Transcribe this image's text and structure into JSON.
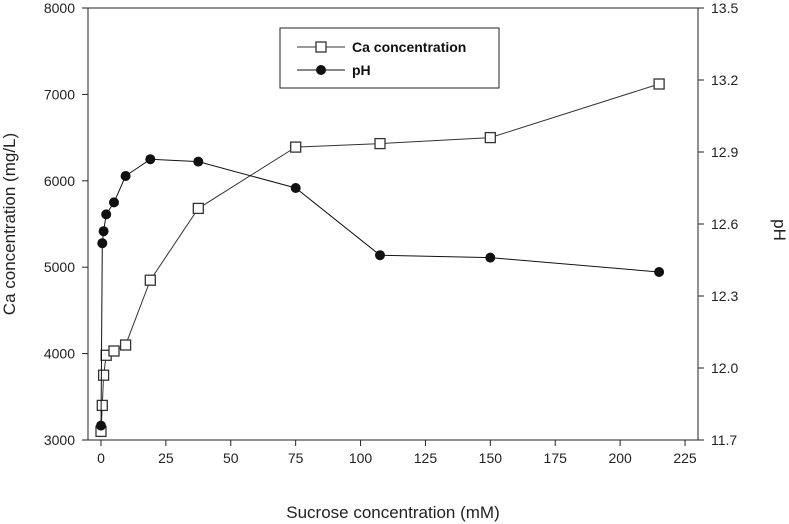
{
  "chart_data": {
    "type": "line",
    "title": "",
    "xlabel": "Sucrose concentration (mM)",
    "ylabel": "Ca concentration (mg/L)",
    "y2label": "pH",
    "xlim": [
      -5,
      230
    ],
    "ylim": [
      3000,
      8000
    ],
    "y2lim": [
      11.7,
      13.5
    ],
    "xticks": [
      0,
      25,
      50,
      75,
      100,
      125,
      150,
      175,
      200,
      225
    ],
    "xtick_labels": [
      "0",
      "25",
      "50",
      "75",
      "100",
      "125",
      "150",
      "175",
      "200",
      "225"
    ],
    "yticks": [
      3000,
      4000,
      5000,
      6000,
      7000,
      8000
    ],
    "ytick_labels": [
      "3000",
      "4000",
      "5000",
      "6000",
      "7000",
      "8000"
    ],
    "y2ticks": [
      11.7,
      12.0,
      12.3,
      12.6,
      12.9,
      13.2,
      13.5
    ],
    "y2tick_labels": [
      "11.7",
      "12.0",
      "12.3",
      "12.6",
      "12.9",
      "13.2",
      "13.5"
    ],
    "grid": false,
    "legend_position": "top-center",
    "series": [
      {
        "name": "Ca concentration",
        "axis": "left",
        "marker": "open-square",
        "color": "#333333",
        "x": [
          0,
          0.5,
          1,
          2,
          5,
          9.5,
          19,
          37.5,
          75,
          107.5,
          150,
          215
        ],
        "y": [
          3100,
          3400,
          3750,
          3980,
          4030,
          4100,
          4850,
          5680,
          6390,
          6430,
          6500,
          7120
        ]
      },
      {
        "name": "pH",
        "axis": "right",
        "marker": "filled-circle",
        "color": "#111111",
        "x": [
          0,
          0.5,
          1,
          2,
          5,
          9.5,
          19,
          37.5,
          75,
          107.5,
          150,
          215
        ],
        "y": [
          11.76,
          12.52,
          12.57,
          12.64,
          12.69,
          12.8,
          12.87,
          12.86,
          12.75,
          12.47,
          12.46,
          12.4
        ]
      }
    ]
  }
}
